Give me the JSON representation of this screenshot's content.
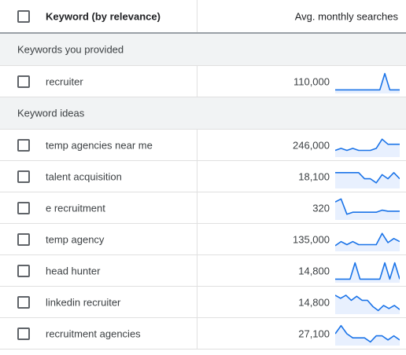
{
  "header": {
    "keyword_col": "Keyword (by relevance)",
    "avg_col": "Avg. monthly searches"
  },
  "groups": [
    {
      "label": "Keywords you provided",
      "rows": [
        {
          "keyword": "recruiter",
          "searches": "110,000",
          "trend": [
            10,
            10,
            10,
            10,
            10,
            10,
            10,
            10,
            10,
            10,
            90,
            10,
            10,
            10
          ]
        }
      ]
    },
    {
      "label": "Keyword ideas",
      "rows": [
        {
          "keyword": "temp agencies near me",
          "searches": "246,000",
          "trend": [
            25,
            35,
            25,
            35,
            25,
            25,
            25,
            35,
            80,
            55,
            55,
            55
          ]
        },
        {
          "keyword": "talent acquisition",
          "searches": "18,100",
          "trend": [
            70,
            70,
            70,
            70,
            70,
            40,
            40,
            20,
            60,
            40,
            70,
            40
          ]
        },
        {
          "keyword": "e recruitment",
          "searches": "320",
          "trend": [
            80,
            95,
            20,
            30,
            30,
            30,
            30,
            30,
            40,
            35,
            35,
            35
          ]
        },
        {
          "keyword": "temp agency",
          "searches": "135,000",
          "trend": [
            20,
            40,
            25,
            40,
            25,
            25,
            25,
            25,
            80,
            35,
            55,
            40
          ]
        },
        {
          "keyword": "head hunter",
          "searches": "14,800",
          "trend": [
            10,
            10,
            10,
            10,
            90,
            10,
            10,
            10,
            10,
            10,
            90,
            10,
            90,
            10
          ]
        },
        {
          "keyword": "linkedin recruiter",
          "searches": "14,800",
          "trend": [
            85,
            70,
            85,
            60,
            80,
            60,
            60,
            30,
            10,
            35,
            20,
            35,
            15
          ]
        },
        {
          "keyword": "recruitment agencies",
          "searches": "27,100",
          "trend": [
            50,
            90,
            50,
            30,
            30,
            30,
            10,
            40,
            40,
            20,
            40,
            20
          ]
        }
      ]
    }
  ],
  "colors": {
    "sparkline": "#1a73e8",
    "sparkline_fill": "#e8f0fe",
    "group_bg": "#f1f3f4"
  }
}
